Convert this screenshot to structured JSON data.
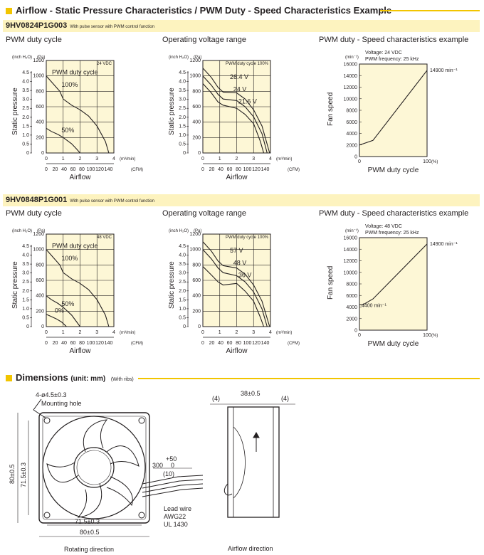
{
  "section1": {
    "title": "Airflow - Static Pressure Characteristics / PWM Duty - Speed Characteristics Example"
  },
  "models": [
    {
      "code": "9HV0824P1G003",
      "note": "With pulse sensor with PWM control function",
      "pq_duty": {
        "title": "PWM duty cycle",
        "voltage": "24 VDC",
        "legend": "PWM duty cycle",
        "curves": [
          "100%",
          "50%"
        ]
      },
      "pq_voltage": {
        "title": "Operating voltage range",
        "duty_note": "PWM duty cycle 100%",
        "curves": [
          "26.4 V",
          "24 V",
          "21.6 V"
        ]
      },
      "speed": {
        "title": "PWM duty - Speed characteristics example",
        "voltage": "Voltage: 24 VDC",
        "freq": "PWM frequency: 25 kHz",
        "max_label": "14900 min⁻¹",
        "min_label": ""
      }
    },
    {
      "code": "9HV0848P1G001",
      "note": "With pulse sensor with PWM control function",
      "pq_duty": {
        "title": "PWM duty cycle",
        "voltage": "48 VDC",
        "legend": "PWM duty cycle",
        "curves": [
          "100%",
          "50%",
          "0%"
        ]
      },
      "pq_voltage": {
        "title": "Operating voltage range",
        "duty_note": "PWM duty cycle 100%",
        "curves": [
          "57 V",
          "48 V",
          "36 V"
        ]
      },
      "speed": {
        "title": "PWM duty - Speed characteristics example",
        "voltage": "Voltage: 48 VDC",
        "freq": "PWM frequency: 25 kHz",
        "max_label": "14900 min⁻¹",
        "min_label": "4400 min⁻¹"
      }
    }
  ],
  "pq_axes": {
    "unit_inch": "(inch H₂O)",
    "unit_pa": "(Pa)",
    "ylabel": "Static pressure",
    "xlabel": "Airflow",
    "unit_m3": "(m³/min)",
    "unit_cfm": "(CFM)",
    "pa_ticks": [
      "1200",
      "1000",
      "800",
      "600",
      "400",
      "200",
      "0"
    ],
    "inch_ticks": [
      "4.5",
      "4.0",
      "3.5",
      "3.0",
      "2.5",
      "2.0",
      "1.5",
      "1.0",
      "0.5",
      "0"
    ],
    "m3_ticks": [
      "0",
      "1",
      "2",
      "3",
      "4"
    ],
    "cfm_ticks": [
      "0",
      "20",
      "40",
      "60",
      "80",
      "100",
      "120",
      "140"
    ]
  },
  "speed_axes": {
    "unit": "(min⁻¹)",
    "ylabel": "Fan speed",
    "xlabel": "PWM duty cycle",
    "x_unit": "(%)",
    "y_ticks": [
      "16000",
      "14000",
      "12000",
      "10000",
      "8000",
      "6000",
      "4000",
      "2000",
      "0"
    ],
    "x_ticks": [
      "0",
      "100"
    ]
  },
  "section2": {
    "title": "Dimensions",
    "unit": "(unit: mm)",
    "note": "(With ribs)"
  },
  "dimensions": {
    "mounting_hole": "4-ø4.5±0.3",
    "mounting_hole_label": "Mounting hole",
    "height_outer": "80±0.5",
    "height_pitch": "71.5±0.3",
    "width_pitch": "71.5±0.3",
    "width_outer": "80±0.5",
    "rotating_direction": "Rotating direction",
    "lead_len_plus": "+50",
    "lead_len": "300",
    "lead_len_minus": "0",
    "lead_strip": "(10)",
    "lead_wire": "Lead wire",
    "awg": "AWG22",
    "ul": "UL 1430",
    "depth": "38±0.5",
    "flange_left": "(4)",
    "flange_right": "(4)",
    "airflow_direction": "Airflow direction"
  },
  "chart_data": [
    {
      "type": "line",
      "title": "PWM duty cycle",
      "xlabel": "Airflow (m³/min)",
      "ylabel": "Static pressure (Pa)",
      "xlim": [
        0,
        4
      ],
      "ylim": [
        0,
        1200
      ],
      "series": [
        {
          "name": "100%",
          "x": [
            0,
            0.4,
            0.8,
            1.0,
            1.5,
            2.0,
            2.5,
            3.0,
            3.5,
            3.7
          ],
          "y": [
            1000,
            900,
            800,
            700,
            620,
            560,
            480,
            350,
            150,
            0
          ]
        },
        {
          "name": "50%",
          "x": [
            0,
            0.3,
            0.7,
            1.0,
            1.5,
            1.8,
            2.0
          ],
          "y": [
            320,
            280,
            240,
            200,
            120,
            50,
            0
          ]
        }
      ]
    },
    {
      "type": "line",
      "title": "Operating voltage range",
      "xlabel": "Airflow (m³/min)",
      "ylabel": "Static pressure (Pa)",
      "xlim": [
        0,
        4
      ],
      "ylim": [
        0,
        1200
      ],
      "series": [
        {
          "name": "26.4 V",
          "x": [
            0,
            0.5,
            0.9,
            1.2,
            2.0,
            2.5,
            3.0,
            3.5,
            3.95
          ],
          "y": [
            1100,
            980,
            850,
            790,
            780,
            700,
            560,
            350,
            0
          ]
        },
        {
          "name": "24 V",
          "x": [
            0,
            0.5,
            0.9,
            1.2,
            2.0,
            2.5,
            3.0,
            3.5,
            3.8
          ],
          "y": [
            1000,
            880,
            760,
            700,
            680,
            600,
            470,
            250,
            0
          ]
        },
        {
          "name": "21.6 V",
          "x": [
            0,
            0.5,
            0.9,
            1.2,
            2.0,
            2.5,
            3.0,
            3.4,
            3.6
          ],
          "y": [
            900,
            780,
            660,
            620,
            580,
            500,
            380,
            150,
            0
          ]
        }
      ]
    },
    {
      "type": "line",
      "title": "PWM duty - Speed characteristics example",
      "xlabel": "PWM duty cycle (%)",
      "ylabel": "Fan speed (min⁻¹)",
      "xlim": [
        0,
        100
      ],
      "ylim": [
        0,
        16000
      ],
      "series": [
        {
          "name": "",
          "x": [
            0,
            20,
            100
          ],
          "y": [
            2000,
            2800,
            14900
          ]
        }
      ]
    },
    {
      "type": "line",
      "title": "PWM duty cycle",
      "xlabel": "Airflow (m³/min)",
      "ylabel": "Static pressure (Pa)",
      "xlim": [
        0,
        4
      ],
      "ylim": [
        0,
        1200
      ],
      "series": [
        {
          "name": "100%",
          "x": [
            0,
            0.4,
            0.8,
            1.0,
            1.5,
            2.0,
            2.5,
            3.0,
            3.5,
            3.7
          ],
          "y": [
            1000,
            900,
            800,
            700,
            620,
            560,
            480,
            350,
            150,
            0
          ]
        },
        {
          "name": "50%",
          "x": [
            0,
            0.3,
            0.7,
            1.0,
            1.5,
            1.8,
            2.0
          ],
          "y": [
            400,
            350,
            300,
            250,
            150,
            60,
            0
          ]
        },
        {
          "name": "0%",
          "x": [
            0,
            0.3,
            0.6,
            0.9,
            1.1,
            1.2
          ],
          "y": [
            160,
            130,
            100,
            60,
            20,
            0
          ]
        }
      ]
    },
    {
      "type": "line",
      "title": "Operating voltage range",
      "xlabel": "Airflow (m³/min)",
      "ylabel": "Static pressure (Pa)",
      "xlim": [
        0,
        4
      ],
      "ylim": [
        0,
        1200
      ],
      "series": [
        {
          "name": "57 V",
          "x": [
            0,
            0.5,
            0.9,
            1.2,
            2.0,
            2.5,
            3.0,
            3.5,
            3.95
          ],
          "y": [
            1100,
            980,
            850,
            790,
            760,
            680,
            540,
            330,
            0
          ]
        },
        {
          "name": "48 V",
          "x": [
            0,
            0.5,
            0.9,
            1.2,
            2.0,
            2.5,
            3.0,
            3.5,
            3.8
          ],
          "y": [
            1000,
            880,
            760,
            700,
            660,
            580,
            450,
            230,
            0
          ]
        },
        {
          "name": "36 V",
          "x": [
            0,
            0.5,
            0.9,
            1.2,
            2.0,
            2.5,
            3.0,
            3.4,
            3.6
          ],
          "y": [
            780,
            670,
            580,
            540,
            560,
            460,
            330,
            120,
            0
          ]
        }
      ]
    },
    {
      "type": "line",
      "title": "PWM duty - Speed characteristics example",
      "xlabel": "PWM duty cycle (%)",
      "ylabel": "Fan speed (min⁻¹)",
      "xlim": [
        0,
        100
      ],
      "ylim": [
        0,
        16000
      ],
      "series": [
        {
          "name": "",
          "x": [
            0,
            5,
            20,
            100
          ],
          "y": [
            4400,
            4400,
            5400,
            14900
          ]
        }
      ]
    }
  ]
}
